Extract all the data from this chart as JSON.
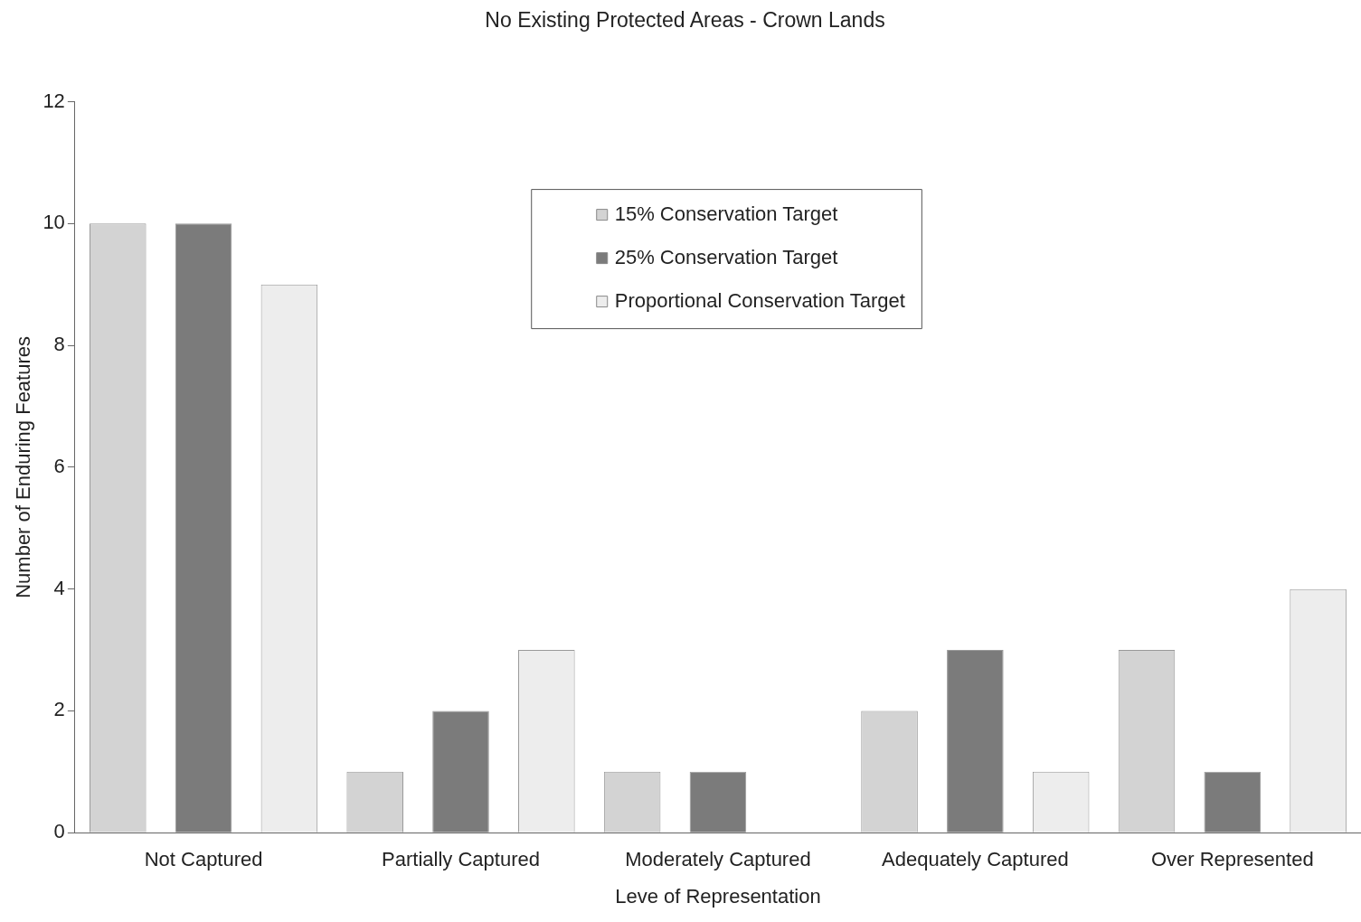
{
  "chart_data": {
    "type": "bar",
    "title": "No Existing Protected Areas - Crown Lands",
    "xlabel": "Leve of Representation",
    "ylabel": "Number of Enduring Features",
    "categories": [
      "Not Captured",
      "Partially Captured",
      "Moderately Captured",
      "Adequately Captured",
      "Over Represented"
    ],
    "series": [
      {
        "name": "15% Conservation Target",
        "color": "#d3d3d3",
        "values": [
          10,
          1,
          1,
          2,
          3
        ]
      },
      {
        "name": "25% Conservation Target",
        "color": "#7b7b7b",
        "values": [
          10,
          2,
          1,
          3,
          1
        ]
      },
      {
        "name": "Proportional Conservation Target",
        "color": "#ededed",
        "values": [
          9,
          3,
          0,
          1,
          4
        ]
      }
    ],
    "ylim": [
      0,
      12
    ],
    "yticks": [
      0,
      2,
      4,
      6,
      8,
      10,
      12
    ],
    "grid": false,
    "legend": "top"
  }
}
